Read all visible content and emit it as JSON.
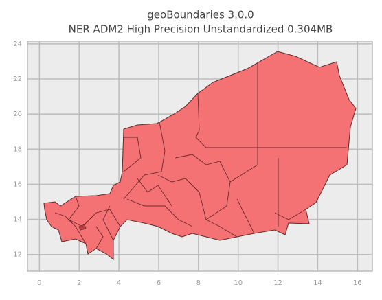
{
  "chart_data": {
    "type": "map",
    "title": "geoBoundaries 3.0.0",
    "subtitle": "NER ADM2 High Precision Unstandardized 0.304MB",
    "xlim": [
      -0.6,
      16.75
    ],
    "xticks": [
      0,
      2,
      4,
      6,
      8,
      10,
      12,
      14,
      16
    ],
    "ylim": [
      11.05,
      24.15
    ],
    "yticks": [
      12,
      14,
      16,
      18,
      20,
      22,
      24
    ],
    "grid": true,
    "color": "#f47174"
  }
}
